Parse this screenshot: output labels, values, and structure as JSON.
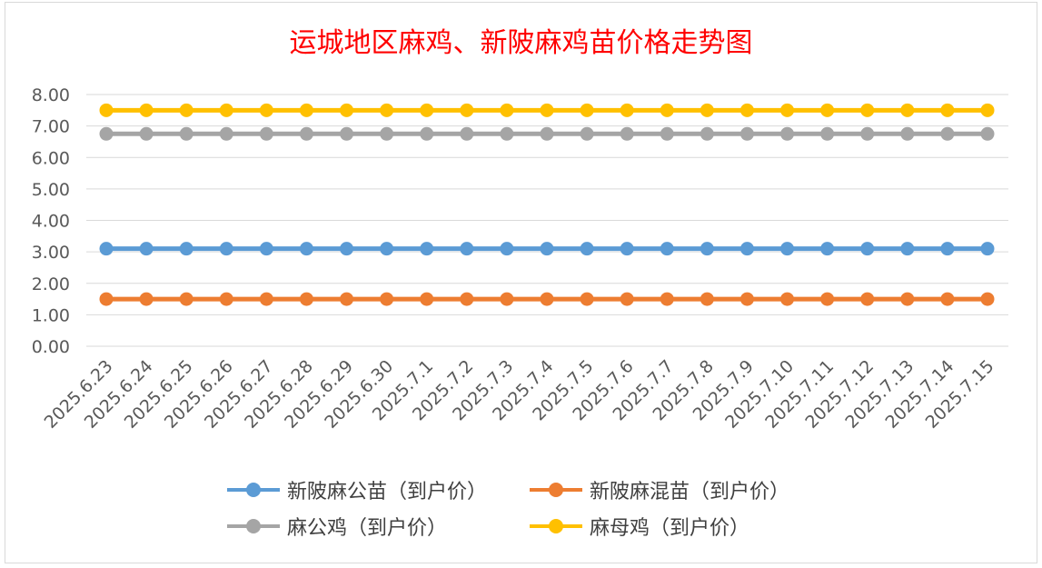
{
  "chart_data": {
    "type": "line",
    "title": "运城地区麻鸡、新陂麻鸡苗价格走势图",
    "categories": [
      "2025.6.23",
      "2025.6.24",
      "2025.6.25",
      "2025.6.26",
      "2025.6.27",
      "2025.6.28",
      "2025.6.29",
      "2025.6.30",
      "2025.7.1",
      "2025.7.2",
      "2025.7.3",
      "2025.7.4",
      "2025.7.5",
      "2025.7.6",
      "2025.7.7",
      "2025.7.8",
      "2025.7.9",
      "2025.7.10",
      "2025.7.11",
      "2025.7.12",
      "2025.7.13",
      "2025.7.14",
      "2025.7.15"
    ],
    "y_ticks": [
      "0.00",
      "1.00",
      "2.00",
      "3.00",
      "4.00",
      "5.00",
      "6.00",
      "7.00",
      "8.00"
    ],
    "ylim": [
      0,
      8
    ],
    "grid": true,
    "legend_position": "bottom",
    "series": [
      {
        "name": "新陂麻公苗（到户价）",
        "color": "#5b9bd5",
        "values": [
          3.1,
          3.1,
          3.1,
          3.1,
          3.1,
          3.1,
          3.1,
          3.1,
          3.1,
          3.1,
          3.1,
          3.1,
          3.1,
          3.1,
          3.1,
          3.1,
          3.1,
          3.1,
          3.1,
          3.1,
          3.1,
          3.1,
          3.1
        ]
      },
      {
        "name": "新陂麻混苗（到户价）",
        "color": "#ed7d31",
        "values": [
          1.5,
          1.5,
          1.5,
          1.5,
          1.5,
          1.5,
          1.5,
          1.5,
          1.5,
          1.5,
          1.5,
          1.5,
          1.5,
          1.5,
          1.5,
          1.5,
          1.5,
          1.5,
          1.5,
          1.5,
          1.5,
          1.5,
          1.5
        ]
      },
      {
        "name": "麻公鸡（到户价）",
        "color": "#a5a5a5",
        "values": [
          6.75,
          6.75,
          6.75,
          6.75,
          6.75,
          6.75,
          6.75,
          6.75,
          6.75,
          6.75,
          6.75,
          6.75,
          6.75,
          6.75,
          6.75,
          6.75,
          6.75,
          6.75,
          6.75,
          6.75,
          6.75,
          6.75,
          6.75
        ]
      },
      {
        "name": "麻母鸡（到户价）",
        "color": "#ffc000",
        "values": [
          7.5,
          7.5,
          7.5,
          7.5,
          7.5,
          7.5,
          7.5,
          7.5,
          7.5,
          7.5,
          7.5,
          7.5,
          7.5,
          7.5,
          7.5,
          7.5,
          7.5,
          7.5,
          7.5,
          7.5,
          7.5,
          7.5,
          7.5
        ]
      }
    ]
  }
}
